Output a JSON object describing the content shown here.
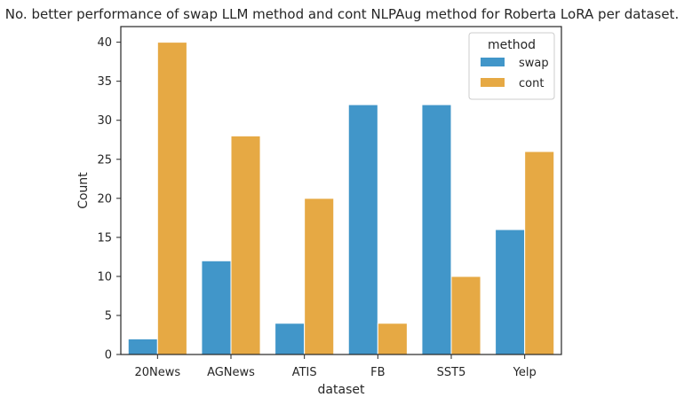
{
  "chart_data": {
    "type": "bar",
    "title": "No. better performance of swap LLM method and cont NLPAug method for Roberta LoRA per dataset.",
    "xlabel": "dataset",
    "ylabel": "Count",
    "categories": [
      "20News",
      "AGNews",
      "ATIS",
      "FB",
      "SST5",
      "Yelp"
    ],
    "series": [
      {
        "name": "swap",
        "color": "#4196c9",
        "values": [
          2,
          12,
          4,
          32,
          32,
          16
        ]
      },
      {
        "name": "cont",
        "color": "#e6a944",
        "values": [
          40,
          28,
          20,
          4,
          10,
          26
        ]
      }
    ],
    "ylim": [
      0,
      42
    ],
    "yticks": [
      0,
      5,
      10,
      15,
      20,
      25,
      30,
      35,
      40
    ],
    "grid": false,
    "legend": {
      "title": "method",
      "placement": "top-right"
    }
  }
}
